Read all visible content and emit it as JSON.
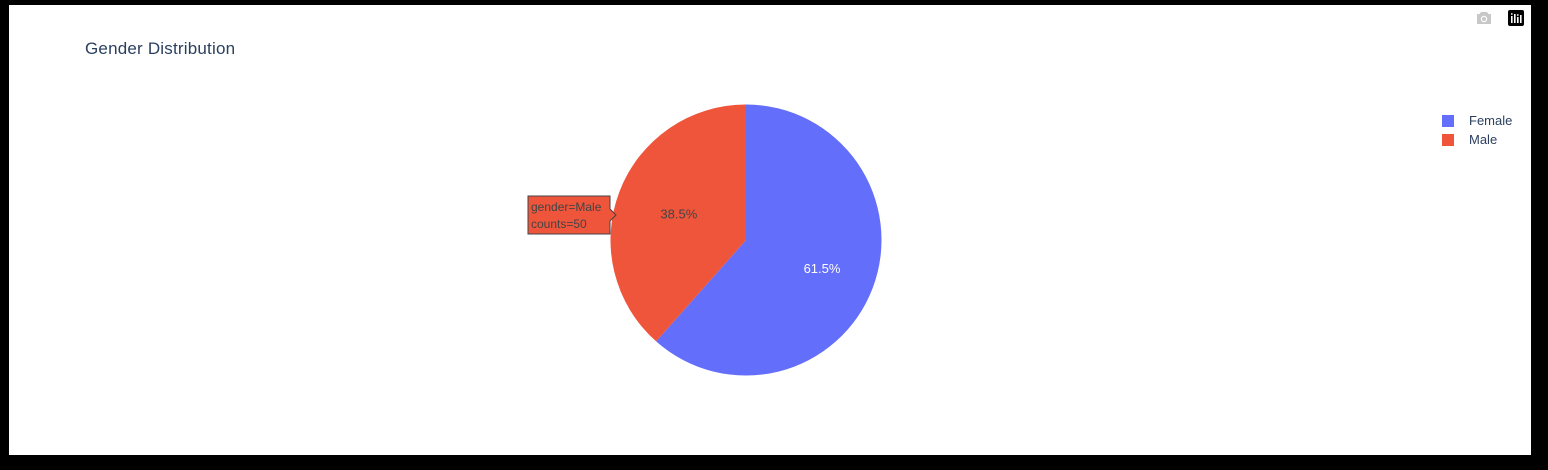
{
  "colors": {
    "female": "#636efa",
    "male": "#ef553b",
    "frame_bg": "#000000",
    "plot_bg": "#ffffff",
    "text": "#2a3f5f"
  },
  "modebar": {
    "icons": [
      "camera-icon",
      "plotly-logo-icon"
    ]
  },
  "chart_data": {
    "type": "pie",
    "title": "Gender Distribution",
    "labels": [
      "Female",
      "Male"
    ],
    "values": [
      80,
      50
    ],
    "percent_labels": [
      "61.5%",
      "38.5%"
    ],
    "colors": [
      "#636efa",
      "#ef553b"
    ],
    "legend_position": "top-right",
    "hover": {
      "line1": "gender=Male",
      "line2": "counts=50"
    }
  }
}
